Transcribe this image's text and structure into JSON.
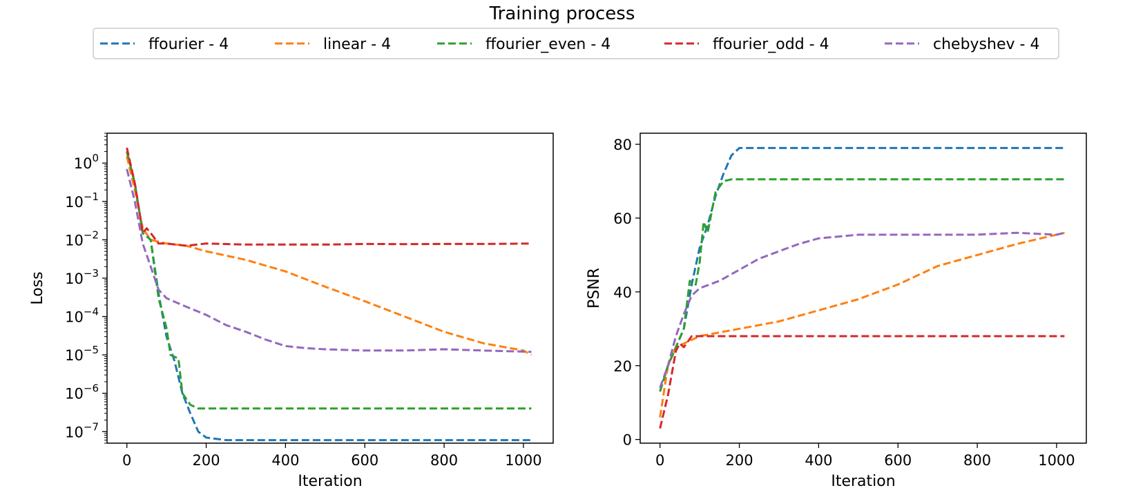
{
  "figure": {
    "title": "Training process",
    "legend": [
      "ffourier - 4",
      "linear - 4",
      "ffourier_even - 4",
      "ffourier_odd - 4",
      "chebyshev - 4"
    ]
  },
  "colors": {
    "ffourier": "#1f77b4",
    "linear": "#ff7f0e",
    "ffourier_even": "#2ca02c",
    "ffourier_odd": "#d62728",
    "chebyshev": "#9467bd"
  },
  "chart_data": [
    {
      "type": "line",
      "title": "",
      "xlabel": "Iteration",
      "ylabel": "Loss",
      "yscale": "log",
      "xlim": [
        -50,
        1075
      ],
      "ylim": [
        5e-08,
        6
      ],
      "xticks": [
        0,
        200,
        400,
        600,
        800,
        1000
      ],
      "xtick_labels": [
        "0",
        "200",
        "400",
        "600",
        "800",
        "1000"
      ],
      "yticks": [
        1e-07,
        1e-06,
        1e-05,
        0.0001,
        0.001,
        0.01,
        0.1,
        1
      ],
      "ytick_labels": [
        {
          "base": "10",
          "exp": "−7"
        },
        {
          "base": "10",
          "exp": "−6"
        },
        {
          "base": "10",
          "exp": "−5"
        },
        {
          "base": "10",
          "exp": "−4"
        },
        {
          "base": "10",
          "exp": "−3"
        },
        {
          "base": "10",
          "exp": "−2"
        },
        {
          "base": "10",
          "exp": "−1"
        },
        {
          "base": "10",
          "exp": "0"
        }
      ],
      "series": [
        {
          "name": "ffourier - 4",
          "color_key": "ffourier",
          "points": [
            [
              0,
              2.0
            ],
            [
              20,
              0.3
            ],
            [
              40,
              0.015
            ],
            [
              60,
              0.01
            ],
            [
              80,
              0.0004
            ],
            [
              100,
              3e-05
            ],
            [
              120,
              7e-06
            ],
            [
              140,
              1e-06
            ],
            [
              160,
              3e-07
            ],
            [
              180,
              1e-07
            ],
            [
              200,
              7e-08
            ],
            [
              250,
              6e-08
            ],
            [
              300,
              6e-08
            ],
            [
              400,
              6e-08
            ],
            [
              500,
              6e-08
            ],
            [
              600,
              6e-08
            ],
            [
              700,
              6e-08
            ],
            [
              800,
              6e-08
            ],
            [
              900,
              6e-08
            ],
            [
              1020,
              6e-08
            ]
          ]
        },
        {
          "name": "linear - 4",
          "color_key": "linear",
          "points": [
            [
              0,
              1.5
            ],
            [
              20,
              0.2
            ],
            [
              40,
              0.02
            ],
            [
              60,
              0.01
            ],
            [
              100,
              0.008
            ],
            [
              150,
              0.007
            ],
            [
              200,
              0.005
            ],
            [
              300,
              0.003
            ],
            [
              400,
              0.0015
            ],
            [
              500,
              0.0006
            ],
            [
              600,
              0.00025
            ],
            [
              700,
              0.0001
            ],
            [
              800,
              4e-05
            ],
            [
              900,
              2e-05
            ],
            [
              1000,
              1.3e-05
            ],
            [
              1020,
              1e-05
            ]
          ]
        },
        {
          "name": "ffourier_even - 4",
          "color_key": "ffourier_even",
          "points": [
            [
              0,
              2.0
            ],
            [
              20,
              0.3
            ],
            [
              40,
              0.015
            ],
            [
              60,
              0.01
            ],
            [
              80,
              0.0003
            ],
            [
              100,
              5e-05
            ],
            [
              110,
              1e-05
            ],
            [
              130,
              8e-06
            ],
            [
              140,
              1e-06
            ],
            [
              160,
              5e-07
            ],
            [
              180,
              4e-07
            ],
            [
              250,
              4e-07
            ],
            [
              400,
              4e-07
            ],
            [
              600,
              4e-07
            ],
            [
              800,
              4e-07
            ],
            [
              1020,
              4e-07
            ]
          ]
        },
        {
          "name": "ffourier_odd - 4",
          "color_key": "ffourier_odd",
          "points": [
            [
              0,
              2.5
            ],
            [
              20,
              0.3
            ],
            [
              40,
              0.015
            ],
            [
              50,
              0.02
            ],
            [
              60,
              0.015
            ],
            [
              80,
              0.008
            ],
            [
              100,
              0.008
            ],
            [
              150,
              0.007
            ],
            [
              200,
              0.008
            ],
            [
              300,
              0.0075
            ],
            [
              400,
              0.0075
            ],
            [
              500,
              0.0075
            ],
            [
              600,
              0.0078
            ],
            [
              700,
              0.0077
            ],
            [
              800,
              0.0078
            ],
            [
              900,
              0.0078
            ],
            [
              1020,
              0.008
            ]
          ]
        },
        {
          "name": "chebyshev - 4",
          "color_key": "chebyshev",
          "points": [
            [
              0,
              0.7
            ],
            [
              20,
              0.1
            ],
            [
              40,
              0.008
            ],
            [
              60,
              0.002
            ],
            [
              80,
              0.0005
            ],
            [
              100,
              0.0003
            ],
            [
              150,
              0.00018
            ],
            [
              200,
              0.00011
            ],
            [
              250,
              6e-05
            ],
            [
              300,
              4e-05
            ],
            [
              350,
              2.5e-05
            ],
            [
              400,
              1.7e-05
            ],
            [
              450,
              1.5e-05
            ],
            [
              500,
              1.4e-05
            ],
            [
              600,
              1.3e-05
            ],
            [
              700,
              1.3e-05
            ],
            [
              800,
              1.4e-05
            ],
            [
              900,
              1.3e-05
            ],
            [
              1020,
              1.2e-05
            ]
          ]
        }
      ]
    },
    {
      "type": "line",
      "title": "",
      "xlabel": "Iteration",
      "ylabel": "PSNR",
      "yscale": "linear",
      "xlim": [
        -50,
        1075
      ],
      "ylim": [
        -1,
        83
      ],
      "xticks": [
        0,
        200,
        400,
        600,
        800,
        1000
      ],
      "xtick_labels": [
        "0",
        "200",
        "400",
        "600",
        "800",
        "1000"
      ],
      "yticks": [
        0,
        20,
        40,
        60,
        80
      ],
      "ytick_labels": [
        "0",
        "20",
        "40",
        "60",
        "80"
      ],
      "series": [
        {
          "name": "ffourier - 4",
          "color_key": "ffourier",
          "points": [
            [
              0,
              13
            ],
            [
              20,
              20
            ],
            [
              40,
              25
            ],
            [
              60,
              30
            ],
            [
              80,
              42
            ],
            [
              100,
              52
            ],
            [
              120,
              58
            ],
            [
              140,
              66
            ],
            [
              160,
              72
            ],
            [
              180,
              77
            ],
            [
              200,
              79
            ],
            [
              250,
              79
            ],
            [
              300,
              79
            ],
            [
              400,
              79
            ],
            [
              500,
              79
            ],
            [
              600,
              79
            ],
            [
              700,
              79
            ],
            [
              800,
              79
            ],
            [
              900,
              79
            ],
            [
              1020,
              79
            ]
          ]
        },
        {
          "name": "linear - 4",
          "color_key": "linear",
          "points": [
            [
              0,
              6
            ],
            [
              20,
              20
            ],
            [
              40,
              25
            ],
            [
              60,
              26
            ],
            [
              80,
              27
            ],
            [
              100,
              28
            ],
            [
              150,
              29
            ],
            [
              200,
              30
            ],
            [
              300,
              32
            ],
            [
              400,
              35
            ],
            [
              500,
              38
            ],
            [
              600,
              42
            ],
            [
              700,
              47
            ],
            [
              800,
              50
            ],
            [
              900,
              53
            ],
            [
              1020,
              56
            ]
          ]
        },
        {
          "name": "ffourier_even - 4",
          "color_key": "ffourier_even",
          "points": [
            [
              0,
              13
            ],
            [
              20,
              20
            ],
            [
              40,
              25
            ],
            [
              60,
              30
            ],
            [
              75,
              43
            ],
            [
              90,
              42
            ],
            [
              100,
              48
            ],
            [
              110,
              59
            ],
            [
              120,
              56
            ],
            [
              140,
              67
            ],
            [
              160,
              70
            ],
            [
              180,
              70.5
            ],
            [
              250,
              70.5
            ],
            [
              400,
              70.5
            ],
            [
              600,
              70.5
            ],
            [
              800,
              70.5
            ],
            [
              1020,
              70.5
            ]
          ]
        },
        {
          "name": "ffourier_odd - 4",
          "color_key": "ffourier_odd",
          "points": [
            [
              0,
              3
            ],
            [
              20,
              12
            ],
            [
              40,
              24
            ],
            [
              50,
              26
            ],
            [
              60,
              25
            ],
            [
              80,
              28
            ],
            [
              100,
              28
            ],
            [
              150,
              28
            ],
            [
              200,
              28
            ],
            [
              300,
              28
            ],
            [
              400,
              28
            ],
            [
              500,
              28
            ],
            [
              600,
              28
            ],
            [
              700,
              28
            ],
            [
              800,
              28
            ],
            [
              900,
              28
            ],
            [
              1020,
              28
            ]
          ]
        },
        {
          "name": "chebyshev - 4",
          "color_key": "chebyshev",
          "points": [
            [
              0,
              14
            ],
            [
              20,
              20
            ],
            [
              40,
              28
            ],
            [
              60,
              34
            ],
            [
              80,
              39
            ],
            [
              100,
              41
            ],
            [
              150,
              43
            ],
            [
              200,
              46
            ],
            [
              250,
              49
            ],
            [
              300,
              51
            ],
            [
              350,
              53
            ],
            [
              400,
              54.5
            ],
            [
              450,
              55
            ],
            [
              500,
              55.5
            ],
            [
              600,
              55.5
            ],
            [
              700,
              55.5
            ],
            [
              800,
              55.5
            ],
            [
              900,
              56
            ],
            [
              1000,
              55.5
            ],
            [
              1020,
              56
            ]
          ]
        }
      ]
    }
  ]
}
